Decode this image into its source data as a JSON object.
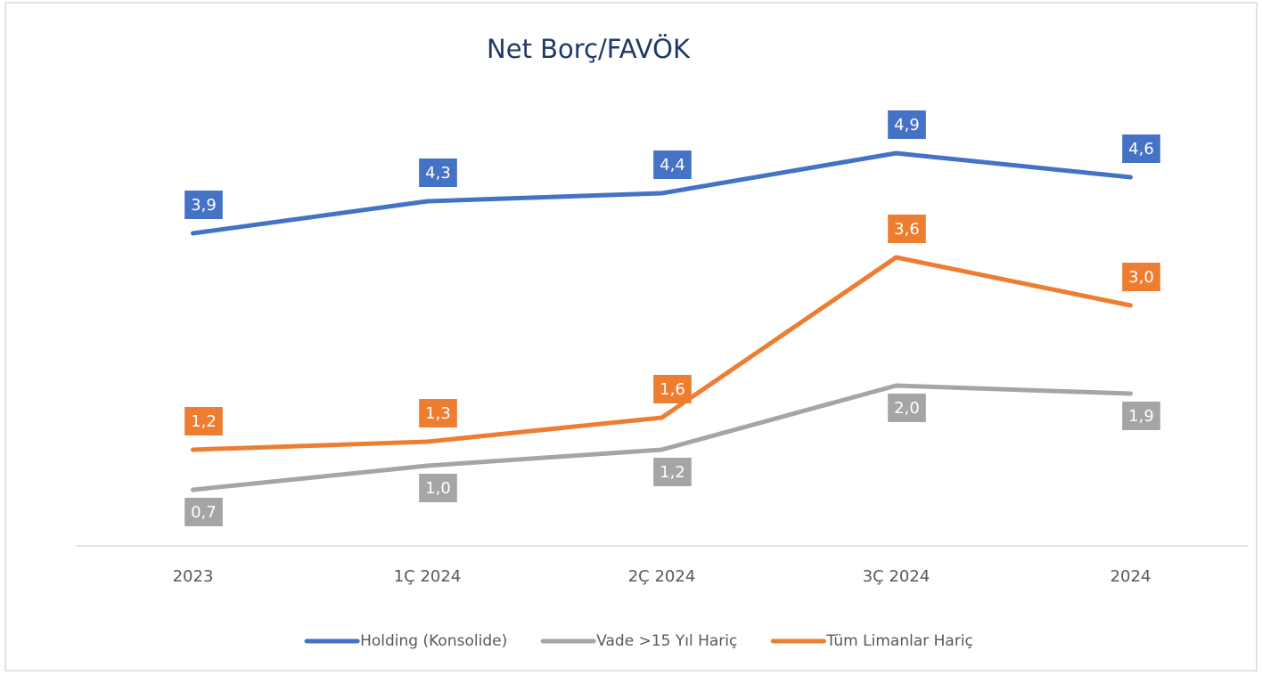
{
  "chart_data": {
    "type": "line",
    "title": "Net Borç/FAVÖK",
    "categories": [
      "2023",
      "1Ç 2024",
      "2Ç 2024",
      "3Ç 2024",
      "2024"
    ],
    "series": [
      {
        "name": "Holding (Konsolide)",
        "color": "#4472c4",
        "values": [
          3.9,
          4.3,
          4.4,
          4.9,
          4.6
        ],
        "value_labels": [
          "3,9",
          "4,3",
          "4,4",
          "4,9",
          "4,6"
        ]
      },
      {
        "name": "Vade >15 Yıl Hariç",
        "color": "#a5a5a5",
        "values": [
          0.7,
          1.0,
          1.2,
          2.0,
          1.9
        ],
        "value_labels": [
          "0,7",
          "1,0",
          "1,2",
          "2,0",
          "1,9"
        ]
      },
      {
        "name": "Tüm Limanlar Hariç",
        "color": "#ed7d31",
        "values": [
          1.2,
          1.3,
          1.6,
          3.6,
          3.0
        ],
        "value_labels": [
          "1,2",
          "1,3",
          "1,6",
          "3,6",
          "3,0"
        ]
      }
    ],
    "ylim": [
      0,
      6
    ],
    "legend": "bottom"
  }
}
